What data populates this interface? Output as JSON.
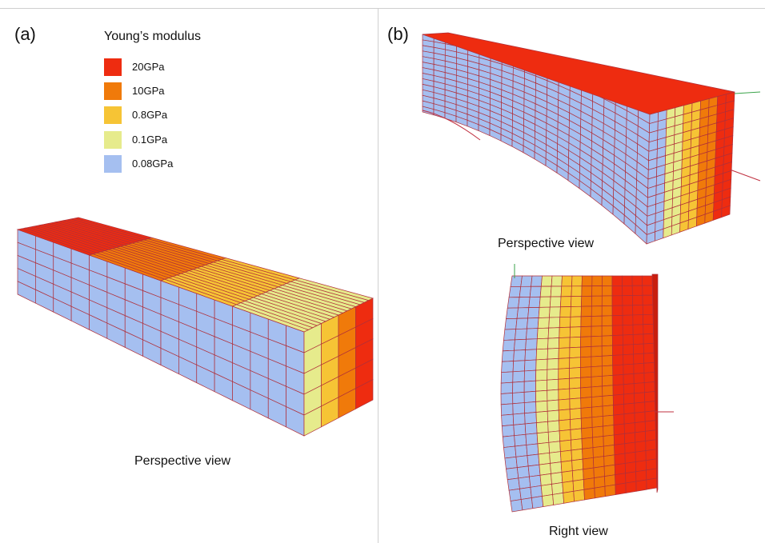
{
  "panel_a": {
    "label": "(a)",
    "caption": "Perspective view",
    "legend": {
      "title": "Young’s modulus",
      "items": [
        {
          "label": "20GPa",
          "color": "#ee2c10"
        },
        {
          "label": "10GPa",
          "color": "#f07a0a"
        },
        {
          "label": "0.8GPa",
          "color": "#f6c435"
        },
        {
          "label": "0.1GPa",
          "color": "#e6eb8c"
        },
        {
          "label": "0.08GPa",
          "color": "#a5bff0"
        }
      ]
    }
  },
  "panel_b": {
    "label": "(b)",
    "caption_top": "Perspective view",
    "caption_bottom": "Right view"
  },
  "colors": {
    "mesh_line": "#b0303a",
    "axis_green": "#3aa34a",
    "axis_red": "#c03040",
    "face_dark": "#c81e0e"
  }
}
